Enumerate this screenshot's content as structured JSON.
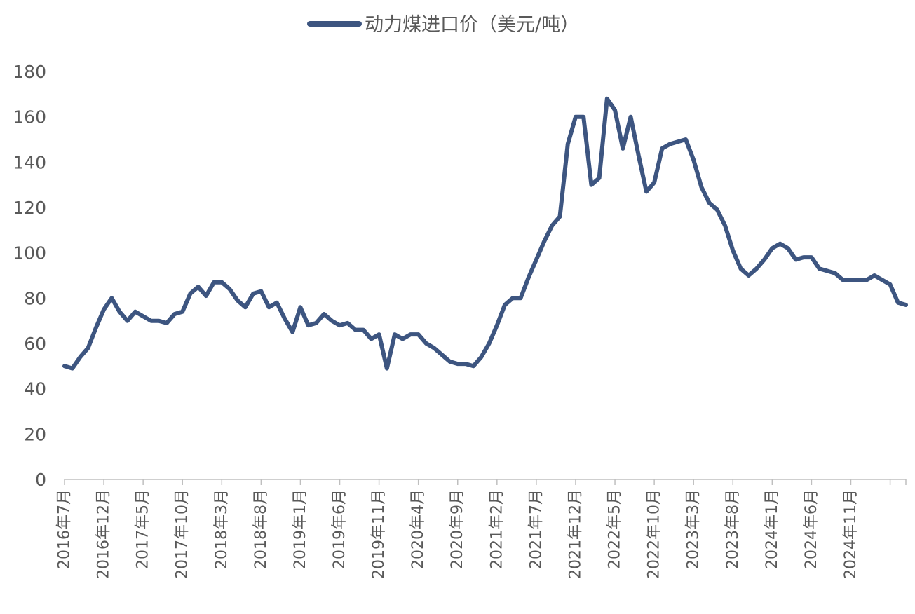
{
  "chart_data": {
    "type": "line",
    "title": "",
    "xlabel": "",
    "ylabel": "",
    "ylim": [
      0,
      180
    ],
    "yticks": [
      0,
      20,
      40,
      60,
      80,
      100,
      120,
      140,
      160,
      180
    ],
    "grid": false,
    "legend_position": "top-center",
    "x": [
      "2016-07",
      "2016-08",
      "2016-09",
      "2016-10",
      "2016-11",
      "2016-12",
      "2017-01",
      "2017-02",
      "2017-03",
      "2017-04",
      "2017-05",
      "2017-06",
      "2017-07",
      "2017-08",
      "2017-09",
      "2017-10",
      "2017-11",
      "2017-12",
      "2018-01",
      "2018-02",
      "2018-03",
      "2018-04",
      "2018-05",
      "2018-06",
      "2018-07",
      "2018-08",
      "2018-09",
      "2018-10",
      "2018-11",
      "2018-12",
      "2019-01",
      "2019-02",
      "2019-03",
      "2019-04",
      "2019-05",
      "2019-06",
      "2019-07",
      "2019-08",
      "2019-09",
      "2019-10",
      "2019-11",
      "2019-12",
      "2020-01",
      "2020-02",
      "2020-03",
      "2020-04",
      "2020-05",
      "2020-06",
      "2020-07",
      "2020-08",
      "2020-09",
      "2020-10",
      "2020-11",
      "2020-12",
      "2021-01",
      "2021-02",
      "2021-03",
      "2021-04",
      "2021-05",
      "2021-06",
      "2021-07",
      "2021-08",
      "2021-09",
      "2021-10",
      "2021-11",
      "2021-12",
      "2022-01",
      "2022-02",
      "2022-03",
      "2022-04",
      "2022-05",
      "2022-06",
      "2022-07",
      "2022-08",
      "2022-09",
      "2022-10",
      "2022-11",
      "2022-12",
      "2023-01",
      "2023-02",
      "2023-03",
      "2023-04",
      "2023-05",
      "2023-06",
      "2023-07",
      "2023-08",
      "2023-09",
      "2023-10",
      "2023-11",
      "2023-12",
      "2024-01",
      "2024-02",
      "2024-03",
      "2024-04",
      "2024-05",
      "2024-06",
      "2024-07",
      "2024-08",
      "2024-09",
      "2024-10",
      "2024-11",
      "2024-12",
      "2025-01",
      "2025-02",
      "2025-03",
      "2025-04",
      "2025-05",
      "2025-06"
    ],
    "tick_labels": [
      "2016年7月",
      "2016年12月",
      "2017年5月",
      "2017年10月",
      "2018年3月",
      "2018年8月",
      "2019年1月",
      "2019年6月",
      "2019年11月",
      "2020年4月",
      "2020年9月",
      "2021年2月",
      "2021年7月",
      "2021年12月",
      "2022年5月",
      "2022年10月",
      "2023年3月",
      "2023年8月",
      "2024年1月",
      "2024年6月",
      "2024年11月"
    ],
    "series": [
      {
        "name": "动力煤进口价（美元/吨）",
        "color": "#3D5580",
        "values": [
          50,
          49,
          54,
          58,
          67,
          75,
          80,
          74,
          70,
          74,
          72,
          70,
          70,
          69,
          73,
          74,
          82,
          85,
          81,
          87,
          87,
          84,
          79,
          76,
          82,
          83,
          76,
          78,
          71,
          65,
          76,
          68,
          69,
          73,
          70,
          68,
          69,
          66,
          66,
          62,
          64,
          49,
          64,
          62,
          64,
          64,
          60,
          58,
          55,
          52,
          51,
          51,
          50,
          54,
          60,
          68,
          77,
          80,
          80,
          89,
          97,
          105,
          112,
          116,
          148,
          160,
          160,
          130,
          133,
          168,
          163,
          146,
          160,
          143,
          127,
          131,
          146,
          148,
          149,
          150,
          141,
          129,
          122,
          119,
          112,
          101,
          93,
          90,
          93,
          97,
          102,
          104,
          102,
          97,
          98,
          98,
          93,
          92,
          91,
          88,
          88,
          88,
          88,
          90,
          88,
          86,
          78,
          77
        ]
      }
    ]
  }
}
